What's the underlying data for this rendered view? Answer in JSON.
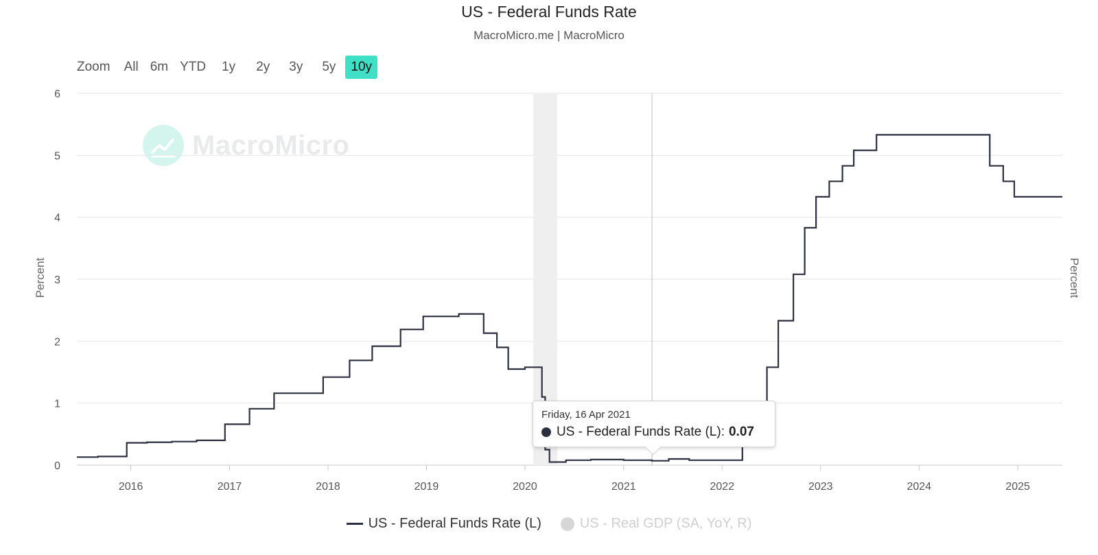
{
  "title": "US - Federal Funds Rate",
  "subtitle": "MacroMicro.me | MacroMicro",
  "zoom": {
    "label": "Zoom",
    "buttons": [
      "All",
      "6m",
      "YTD",
      "1y",
      "2y",
      "3y",
      "5y",
      "10y"
    ],
    "active": "10y"
  },
  "watermark": {
    "text": "MacroMicro",
    "icon": "chart-line-icon"
  },
  "tooltip": {
    "date": "Friday, 16 Apr 2021",
    "series": "US - Federal Funds Rate (L):",
    "value": "0.07"
  },
  "legend": [
    {
      "label": "US - Federal Funds Rate (L)",
      "active": true,
      "color": "#2b2f3f"
    },
    {
      "label": "US - Real GDP (SA, YoY, R)",
      "active": false,
      "color": "#d6d6d6"
    }
  ],
  "chart_data": {
    "type": "line",
    "title": "US - Federal Funds Rate",
    "ylabel_left": "Percent",
    "ylabel_right": "Percent",
    "ylim": [
      0,
      6
    ],
    "yticks": [
      0,
      1,
      2,
      3,
      4,
      5,
      6
    ],
    "xlim": [
      "2015-06-15",
      "2025-06-15"
    ],
    "xticks": [
      "2016",
      "2017",
      "2018",
      "2019",
      "2020",
      "2021",
      "2022",
      "2023",
      "2024",
      "2025"
    ],
    "grid": true,
    "shaded_range": [
      "2020-02-01",
      "2020-04-30"
    ],
    "crosshair_date": "2021-04-16",
    "series": [
      {
        "name": "US - Federal Funds Rate (L)",
        "color": "#2b2f3f",
        "step": true,
        "points": [
          [
            "2015-06-15",
            0.13
          ],
          [
            "2015-09-01",
            0.14
          ],
          [
            "2015-12-17",
            0.36
          ],
          [
            "2016-03-01",
            0.37
          ],
          [
            "2016-06-01",
            0.38
          ],
          [
            "2016-09-01",
            0.4
          ],
          [
            "2016-12-15",
            0.66
          ],
          [
            "2017-03-16",
            0.91
          ],
          [
            "2017-06-15",
            1.16
          ],
          [
            "2017-12-14",
            1.42
          ],
          [
            "2018-03-22",
            1.69
          ],
          [
            "2018-06-14",
            1.92
          ],
          [
            "2018-09-27",
            2.19
          ],
          [
            "2018-12-20",
            2.4
          ],
          [
            "2019-05-01",
            2.44
          ],
          [
            "2019-08-01",
            2.13
          ],
          [
            "2019-09-19",
            1.9
          ],
          [
            "2019-10-31",
            1.55
          ],
          [
            "2020-01-01",
            1.58
          ],
          [
            "2020-03-04",
            1.1
          ],
          [
            "2020-03-16",
            0.25
          ],
          [
            "2020-04-01",
            0.05
          ],
          [
            "2020-06-01",
            0.08
          ],
          [
            "2020-09-01",
            0.09
          ],
          [
            "2021-01-01",
            0.08
          ],
          [
            "2021-04-16",
            0.07
          ],
          [
            "2021-06-17",
            0.1
          ],
          [
            "2021-09-01",
            0.08
          ],
          [
            "2022-03-17",
            0.33
          ],
          [
            "2022-05-05",
            0.83
          ],
          [
            "2022-06-16",
            1.58
          ],
          [
            "2022-07-28",
            2.33
          ],
          [
            "2022-09-22",
            3.08
          ],
          [
            "2022-11-03",
            3.83
          ],
          [
            "2022-12-15",
            4.33
          ],
          [
            "2023-02-02",
            4.58
          ],
          [
            "2023-03-23",
            4.83
          ],
          [
            "2023-05-04",
            5.08
          ],
          [
            "2023-07-27",
            5.33
          ],
          [
            "2024-09-19",
            4.83
          ],
          [
            "2024-11-08",
            4.58
          ],
          [
            "2024-12-19",
            4.33
          ],
          [
            "2025-06-15",
            4.33
          ]
        ]
      }
    ]
  }
}
